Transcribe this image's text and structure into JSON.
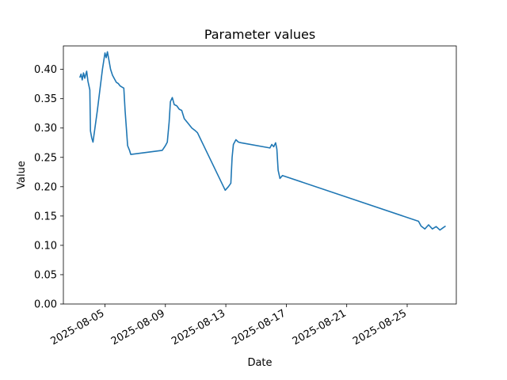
{
  "chart_data": {
    "type": "line",
    "title": "Parameter values",
    "xlabel": "Date",
    "ylabel": "Value",
    "x_axis_type": "date",
    "xlim": [
      "2025-08-02 06:00",
      "2025-08-28 06:00"
    ],
    "ylim": [
      0,
      0.44
    ],
    "x_ticks": [
      "2025-08-05",
      "2025-08-09",
      "2025-08-13",
      "2025-08-17",
      "2025-08-21",
      "2025-08-25"
    ],
    "y_ticks": [
      "0.00",
      "0.05",
      "0.10",
      "0.15",
      "0.20",
      "0.25",
      "0.30",
      "0.35",
      "0.40"
    ],
    "grid": false,
    "legend": "none",
    "series": [
      {
        "color": "#1f77b4",
        "points": [
          [
            "2025-08-03 08:00",
            0.386
          ],
          [
            "2025-08-03 10:00",
            0.392
          ],
          [
            "2025-08-03 12:00",
            0.382
          ],
          [
            "2025-08-03 14:00",
            0.394
          ],
          [
            "2025-08-03 16:00",
            0.385
          ],
          [
            "2025-08-03 19:00",
            0.397
          ],
          [
            "2025-08-03 21:00",
            0.38
          ],
          [
            "2025-08-04 00:00",
            0.365
          ],
          [
            "2025-08-04 01:00",
            0.295
          ],
          [
            "2025-08-04 03:00",
            0.283
          ],
          [
            "2025-08-04 05:00",
            0.276
          ],
          [
            "2025-08-04 12:00",
            0.33
          ],
          [
            "2025-08-04 20:00",
            0.4
          ],
          [
            "2025-08-05 00:00",
            0.428
          ],
          [
            "2025-08-05 02:00",
            0.42
          ],
          [
            "2025-08-05 04:00",
            0.43
          ],
          [
            "2025-08-05 07:00",
            0.412
          ],
          [
            "2025-08-05 09:00",
            0.4
          ],
          [
            "2025-08-05 12:00",
            0.39
          ],
          [
            "2025-08-05 15:00",
            0.384
          ],
          [
            "2025-08-05 18:00",
            0.378
          ],
          [
            "2025-08-05 21:00",
            0.376
          ],
          [
            "2025-08-06 00:00",
            0.372
          ],
          [
            "2025-08-06 03:00",
            0.37
          ],
          [
            "2025-08-06 06:00",
            0.368
          ],
          [
            "2025-08-06 08:00",
            0.33
          ],
          [
            "2025-08-06 10:00",
            0.3
          ],
          [
            "2025-08-06 12:00",
            0.27
          ],
          [
            "2025-08-06 15:00",
            0.262
          ],
          [
            "2025-08-06 17:00",
            0.255
          ],
          [
            "2025-08-08 19:00",
            0.262
          ],
          [
            "2025-08-09 00:00",
            0.27
          ],
          [
            "2025-08-09 03:00",
            0.276
          ],
          [
            "2025-08-09 06:00",
            0.31
          ],
          [
            "2025-08-09 08:00",
            0.345
          ],
          [
            "2025-08-09 11:00",
            0.352
          ],
          [
            "2025-08-09 14:00",
            0.34
          ],
          [
            "2025-08-09 18:00",
            0.338
          ],
          [
            "2025-08-09 22:00",
            0.332
          ],
          [
            "2025-08-10 02:00",
            0.33
          ],
          [
            "2025-08-10 06:00",
            0.316
          ],
          [
            "2025-08-10 12:00",
            0.308
          ],
          [
            "2025-08-10 18:00",
            0.3
          ],
          [
            "2025-08-10 23:00",
            0.296
          ],
          [
            "2025-08-11 03:00",
            0.292
          ],
          [
            "2025-08-12 23:00",
            0.194
          ],
          [
            "2025-08-13 04:00",
            0.2
          ],
          [
            "2025-08-13 08:00",
            0.206
          ],
          [
            "2025-08-13 10:00",
            0.25
          ],
          [
            "2025-08-13 12:00",
            0.272
          ],
          [
            "2025-08-13 16:00",
            0.28
          ],
          [
            "2025-08-13 20:00",
            0.276
          ],
          [
            "2025-08-14 00:00",
            0.275
          ],
          [
            "2025-08-15 22:00",
            0.266
          ],
          [
            "2025-08-16 01:00",
            0.272
          ],
          [
            "2025-08-16 04:00",
            0.268
          ],
          [
            "2025-08-16 07:00",
            0.275
          ],
          [
            "2025-08-16 09:00",
            0.264
          ],
          [
            "2025-08-16 11:00",
            0.228
          ],
          [
            "2025-08-16 14:00",
            0.214
          ],
          [
            "2025-08-16 18:00",
            0.219
          ],
          [
            "2025-08-25 18:00",
            0.141
          ],
          [
            "2025-08-25 22:00",
            0.133
          ],
          [
            "2025-08-26 04:00",
            0.128
          ],
          [
            "2025-08-26 10:00",
            0.135
          ],
          [
            "2025-08-26 16:00",
            0.128
          ],
          [
            "2025-08-26 22:00",
            0.132
          ],
          [
            "2025-08-27 04:00",
            0.126
          ],
          [
            "2025-08-27 09:00",
            0.13
          ],
          [
            "2025-08-27 13:00",
            0.133
          ]
        ]
      }
    ]
  }
}
